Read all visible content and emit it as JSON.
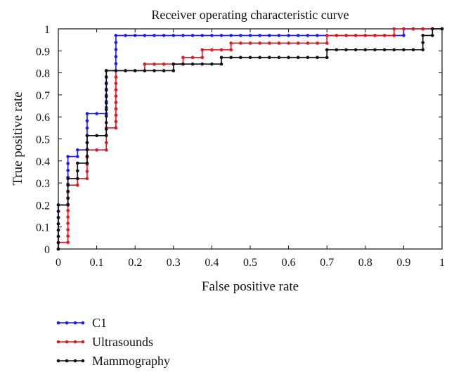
{
  "chart_data": {
    "type": "line",
    "title": "Receiver operating characteristic curve",
    "xlabel": "False positive rate",
    "ylabel": "True positive rate",
    "xlim": [
      0,
      1
    ],
    "ylim": [
      0,
      1
    ],
    "x_ticks": [
      "0",
      "0.1",
      "0.2",
      "0.3",
      "0.4",
      "0.5",
      "0.6",
      "0.7",
      "0.8",
      "0.9",
      "1"
    ],
    "y_ticks": [
      "0",
      "0.1",
      "0.2",
      "0.3",
      "0.4",
      "0.5",
      "0.6",
      "0.7",
      "0.8",
      "0.9",
      "1"
    ],
    "grid": false,
    "legend_position": "bottom-left",
    "series": [
      {
        "name": "C1",
        "color": "#1a1aff",
        "points": [
          [
            0,
            0
          ],
          [
            0,
            0.2
          ],
          [
            0.025,
            0.2
          ],
          [
            0.025,
            0.42
          ],
          [
            0.05,
            0.42
          ],
          [
            0.05,
            0.45
          ],
          [
            0.075,
            0.45
          ],
          [
            0.075,
            0.615
          ],
          [
            0.125,
            0.615
          ],
          [
            0.125,
            0.81
          ],
          [
            0.15,
            0.81
          ],
          [
            0.15,
            0.97
          ],
          [
            0.9,
            0.97
          ],
          [
            0.9,
            1
          ],
          [
            1,
            1
          ]
        ]
      },
      {
        "name": "Ultrasounds",
        "color": "#e8141e",
        "points": [
          [
            0,
            0
          ],
          [
            0,
            0.03
          ],
          [
            0.025,
            0.03
          ],
          [
            0.025,
            0.29
          ],
          [
            0.05,
            0.29
          ],
          [
            0.05,
            0.32
          ],
          [
            0.075,
            0.32
          ],
          [
            0.075,
            0.45
          ],
          [
            0.125,
            0.45
          ],
          [
            0.125,
            0.55
          ],
          [
            0.15,
            0.55
          ],
          [
            0.15,
            0.81
          ],
          [
            0.225,
            0.81
          ],
          [
            0.225,
            0.84
          ],
          [
            0.325,
            0.84
          ],
          [
            0.325,
            0.87
          ],
          [
            0.375,
            0.87
          ],
          [
            0.375,
            0.905
          ],
          [
            0.45,
            0.905
          ],
          [
            0.45,
            0.935
          ],
          [
            0.7,
            0.935
          ],
          [
            0.7,
            0.97
          ],
          [
            0.875,
            0.97
          ],
          [
            0.875,
            1
          ],
          [
            1,
            1
          ]
        ]
      },
      {
        "name": "Mammography",
        "color": "#111111",
        "points": [
          [
            0,
            0
          ],
          [
            0,
            0.2
          ],
          [
            0.025,
            0.2
          ],
          [
            0.025,
            0.32
          ],
          [
            0.05,
            0.32
          ],
          [
            0.05,
            0.39
          ],
          [
            0.075,
            0.39
          ],
          [
            0.075,
            0.515
          ],
          [
            0.125,
            0.515
          ],
          [
            0.125,
            0.81
          ],
          [
            0.3,
            0.81
          ],
          [
            0.3,
            0.84
          ],
          [
            0.425,
            0.84
          ],
          [
            0.425,
            0.87
          ],
          [
            0.7,
            0.87
          ],
          [
            0.7,
            0.905
          ],
          [
            0.95,
            0.905
          ],
          [
            0.95,
            0.97
          ],
          [
            0.975,
            0.97
          ],
          [
            0.975,
            1
          ],
          [
            1,
            1
          ]
        ]
      }
    ]
  }
}
